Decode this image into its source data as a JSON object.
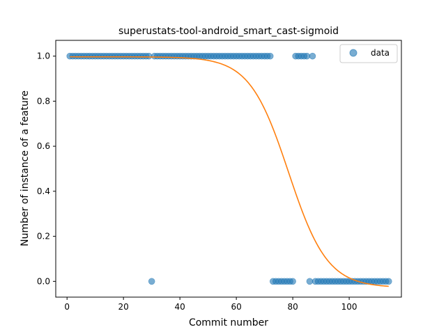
{
  "chart_data": {
    "type": "scatter",
    "title": "superustats-tool-android_smart_cast-sigmoid",
    "xlabel": "Commit number",
    "ylabel": "Number of instance of a feature",
    "xlim": [
      -4,
      118.5
    ],
    "ylim": [
      -0.07,
      1.07
    ],
    "xticks": [
      0,
      20,
      40,
      60,
      80,
      100
    ],
    "yticks": [
      0.0,
      0.2,
      0.4,
      0.6,
      0.8,
      1.0
    ],
    "xtick_labels": [
      "0",
      "20",
      "40",
      "60",
      "80",
      "100"
    ],
    "ytick_labels": [
      "0.0",
      "0.2",
      "0.4",
      "0.6",
      "0.8",
      "1.0"
    ],
    "legend": {
      "position": "top-right",
      "label": "data"
    },
    "colors": {
      "points": "#1f77b4",
      "curve": "#ff7f0e"
    },
    "series": [
      {
        "name": "data",
        "kind": "scatter",
        "points": [
          [
            1,
            1
          ],
          [
            2,
            1
          ],
          [
            3,
            1
          ],
          [
            4,
            1
          ],
          [
            5,
            1
          ],
          [
            6,
            1
          ],
          [
            7,
            1
          ],
          [
            8,
            1
          ],
          [
            9,
            1
          ],
          [
            10,
            1
          ],
          [
            11,
            1
          ],
          [
            12,
            1
          ],
          [
            13,
            1
          ],
          [
            14,
            1
          ],
          [
            15,
            1
          ],
          [
            16,
            1
          ],
          [
            17,
            1
          ],
          [
            18,
            1
          ],
          [
            19,
            1
          ],
          [
            20,
            1
          ],
          [
            21,
            1
          ],
          [
            22,
            1
          ],
          [
            23,
            1
          ],
          [
            24,
            1
          ],
          [
            25,
            1
          ],
          [
            26,
            1
          ],
          [
            27,
            1
          ],
          [
            28,
            1
          ],
          [
            29,
            1
          ],
          [
            30,
            0
          ],
          [
            31,
            1
          ],
          [
            32,
            1
          ],
          [
            33,
            1
          ],
          [
            34,
            1
          ],
          [
            35,
            1
          ],
          [
            36,
            1
          ],
          [
            37,
            1
          ],
          [
            38,
            1
          ],
          [
            39,
            1
          ],
          [
            40,
            1
          ],
          [
            41,
            1
          ],
          [
            42,
            1
          ],
          [
            43,
            1
          ],
          [
            44,
            1
          ],
          [
            45,
            1
          ],
          [
            46,
            1
          ],
          [
            47,
            1
          ],
          [
            48,
            1
          ],
          [
            49,
            1
          ],
          [
            50,
            1
          ],
          [
            51,
            1
          ],
          [
            52,
            1
          ],
          [
            53,
            1
          ],
          [
            54,
            1
          ],
          [
            55,
            1
          ],
          [
            56,
            1
          ],
          [
            57,
            1
          ],
          [
            58,
            1
          ],
          [
            59,
            1
          ],
          [
            60,
            1
          ],
          [
            61,
            1
          ],
          [
            62,
            1
          ],
          [
            63,
            1
          ],
          [
            64,
            1
          ],
          [
            65,
            1
          ],
          [
            66,
            1
          ],
          [
            67,
            1
          ],
          [
            68,
            1
          ],
          [
            69,
            1
          ],
          [
            70,
            1
          ],
          [
            71,
            1
          ],
          [
            72,
            1
          ],
          [
            73,
            0
          ],
          [
            74,
            0
          ],
          [
            75,
            0
          ],
          [
            76,
            0
          ],
          [
            77,
            0
          ],
          [
            78,
            0
          ],
          [
            79,
            0
          ],
          [
            80,
            0
          ],
          [
            81,
            1
          ],
          [
            82,
            1
          ],
          [
            83,
            1
          ],
          [
            84,
            1
          ],
          [
            85,
            1
          ],
          [
            86,
            0
          ],
          [
            87,
            1
          ],
          [
            88,
            0
          ],
          [
            89,
            0
          ],
          [
            90,
            0
          ],
          [
            91,
            0
          ],
          [
            92,
            0
          ],
          [
            93,
            0
          ],
          [
            94,
            0
          ],
          [
            95,
            0
          ],
          [
            96,
            0
          ],
          [
            97,
            0
          ],
          [
            98,
            0
          ],
          [
            99,
            0
          ],
          [
            100,
            0
          ],
          [
            101,
            0
          ],
          [
            102,
            0
          ],
          [
            103,
            0
          ],
          [
            104,
            0
          ],
          [
            105,
            0
          ],
          [
            106,
            0
          ],
          [
            107,
            0
          ],
          [
            108,
            0
          ],
          [
            109,
            0
          ],
          [
            110,
            0
          ],
          [
            111,
            0
          ],
          [
            112,
            0
          ],
          [
            113,
            0
          ],
          [
            114,
            0
          ]
        ]
      },
      {
        "kind": "line",
        "model": "sigmoid",
        "params": {
          "L": 1.025,
          "x0": 78.5,
          "k": 0.145,
          "b": -0.028
        },
        "x_range": [
          1,
          114
        ]
      }
    ]
  }
}
